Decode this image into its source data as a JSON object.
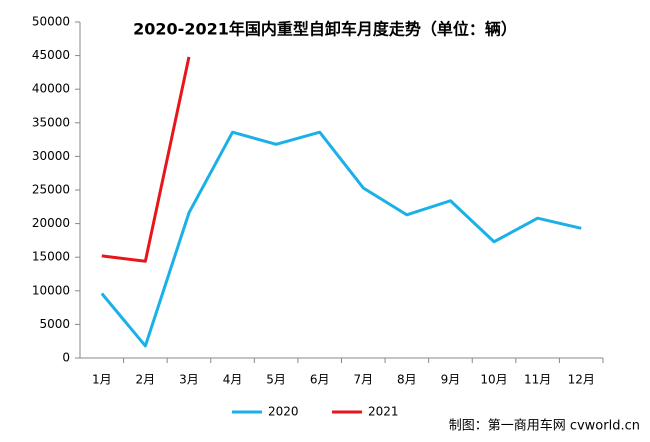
{
  "chart_data": {
    "type": "line",
    "title": "2020-2021年国内重型自卸车月度走势（单位：辆）",
    "categories": [
      "1月",
      "2月",
      "3月",
      "4月",
      "5月",
      "6月",
      "7月",
      "8月",
      "9月",
      "10月",
      "11月",
      "12月"
    ],
    "series": [
      {
        "name": "2020",
        "color": "#1ab0e8",
        "values": [
          9600,
          1800,
          21600,
          33600,
          31800,
          33600,
          25300,
          21300,
          23400,
          17300,
          20800,
          19300
        ]
      },
      {
        "name": "2021",
        "color": "#e8161b",
        "values": [
          15200,
          14400,
          44800,
          null,
          null,
          null,
          null,
          null,
          null,
          null,
          null,
          null
        ]
      }
    ],
    "ylim": [
      0,
      50000
    ],
    "yticks": [
      0,
      5000,
      10000,
      15000,
      20000,
      25000,
      30000,
      35000,
      40000,
      45000,
      50000
    ],
    "grid": false,
    "legend": "bottom",
    "source": "制图：第一商用车网 cvworld.cn"
  }
}
